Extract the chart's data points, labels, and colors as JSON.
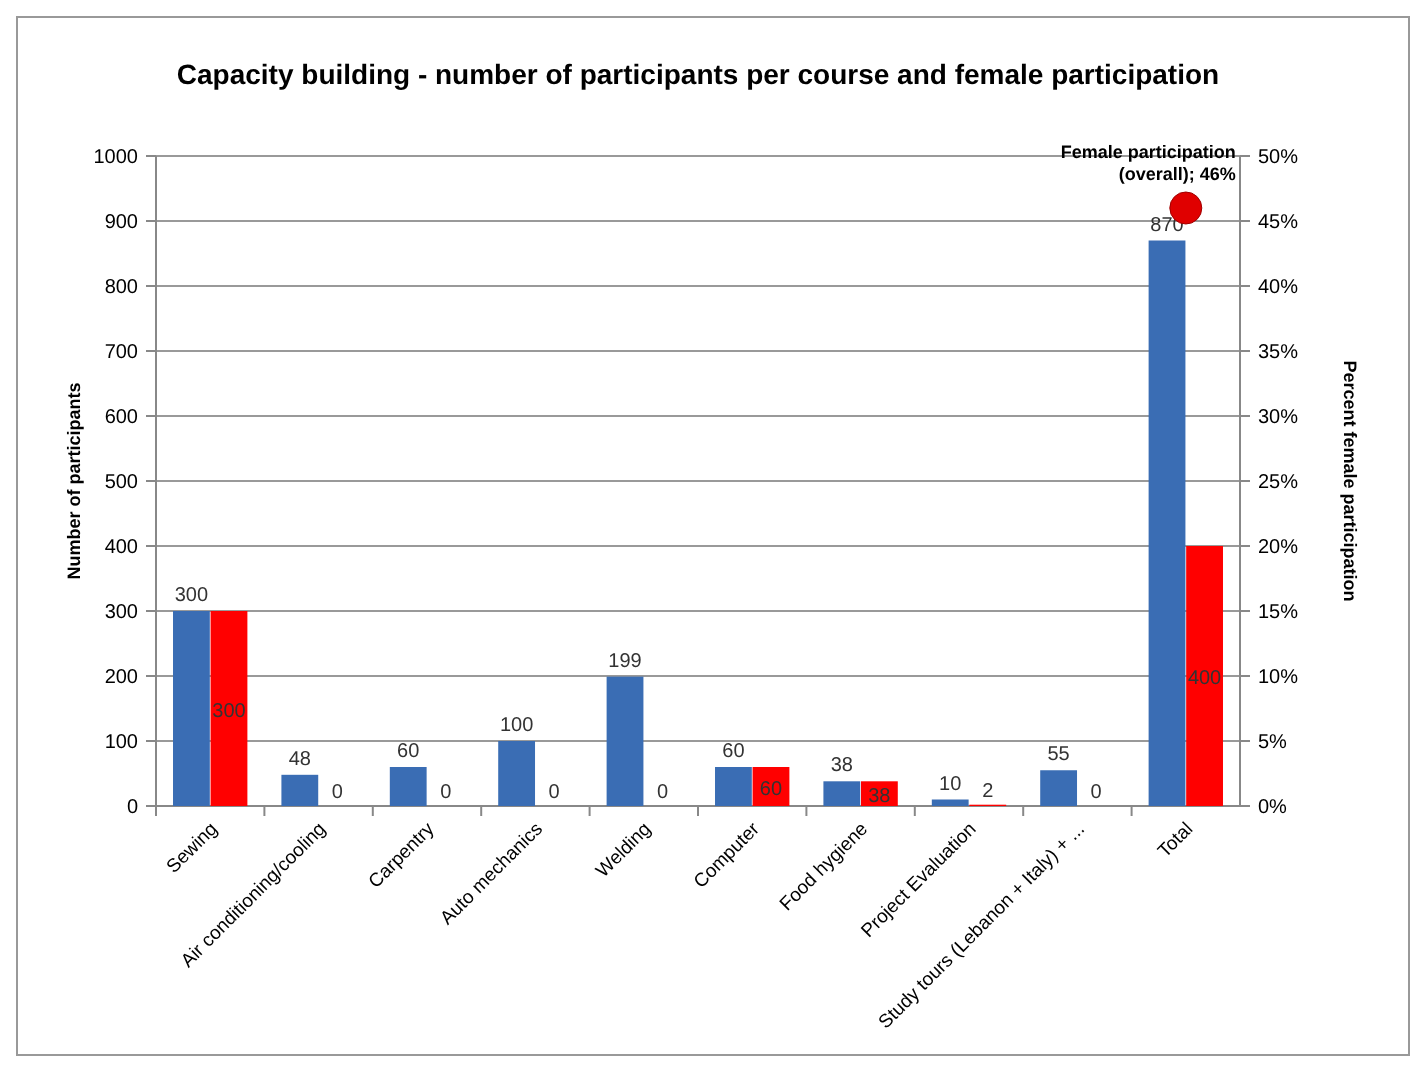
{
  "chart_data": {
    "type": "bar",
    "title": "Capacity building - number of participants per course and female participation",
    "ylabel": "Number of participants",
    "y2label": "Percent female participation",
    "categories": [
      "Sewing",
      "Air conditioning/cooling",
      "Carpentry",
      "Auto mechanics",
      "Welding",
      "Computer",
      "Food hygiene",
      "Project Evaluation",
      "Study tours (Lebanon + Italy) + ...",
      "Total"
    ],
    "series": [
      {
        "color": "#3a6db4",
        "values": [
          300,
          48,
          60,
          100,
          199,
          60,
          38,
          10,
          55,
          870
        ]
      },
      {
        "color": "#ff0000",
        "values": [
          300,
          0,
          0,
          0,
          0,
          60,
          38,
          2,
          0,
          400
        ]
      },
      {
        "type": "scatter",
        "axis": "y2",
        "color": "#e00000",
        "x": [
          "Total"
        ],
        "values": [
          46
        ],
        "value_labels": [
          "Female participation (overall); 46%"
        ]
      }
    ],
    "ylim": [
      0,
      1000
    ],
    "yticks": [
      0,
      100,
      200,
      300,
      400,
      500,
      600,
      700,
      800,
      900,
      1000
    ],
    "y2lim": [
      0,
      50
    ],
    "y2ticks": [
      {
        "value": 0,
        "label": "0%"
      },
      {
        "value": 5,
        "label": "5%"
      },
      {
        "value": 10,
        "label": "10%"
      },
      {
        "value": 15,
        "label": "15%"
      },
      {
        "value": 20,
        "label": "20%"
      },
      {
        "value": 25,
        "label": "25%"
      },
      {
        "value": 30,
        "label": "30%"
      },
      {
        "value": 35,
        "label": "35%"
      },
      {
        "value": 40,
        "label": "40%"
      },
      {
        "value": 45,
        "label": "45%"
      },
      {
        "value": 50,
        "label": "50%"
      }
    ],
    "grid": "y",
    "data_labels": true,
    "marker": "circle"
  }
}
